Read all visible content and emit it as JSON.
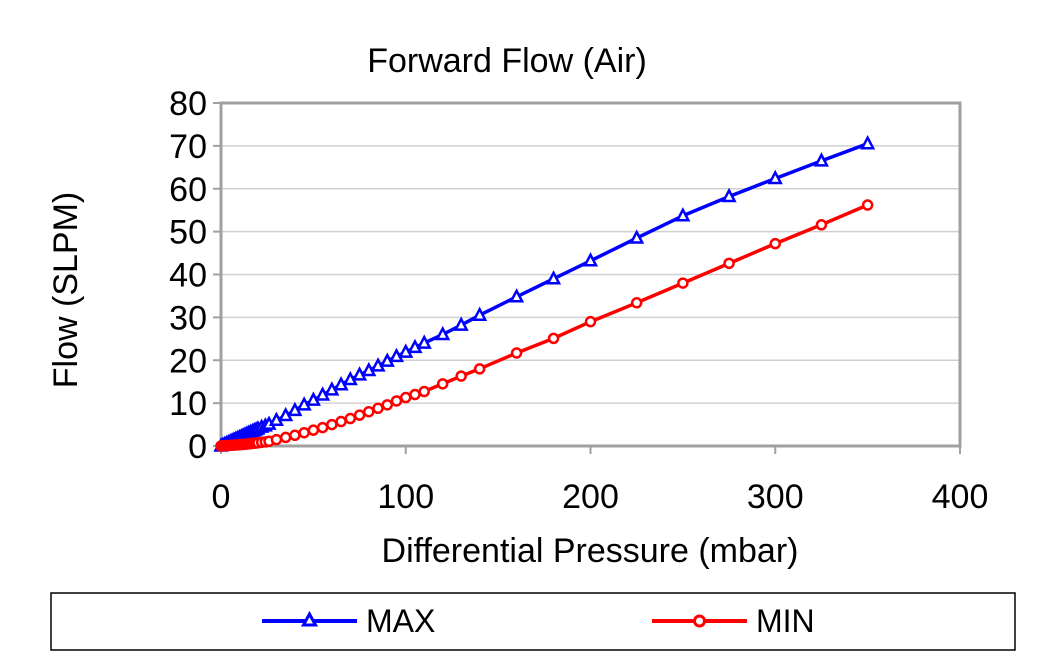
{
  "chart_data": {
    "type": "line",
    "title": "Forward Flow (Air)",
    "xlabel": "Differential Pressure (mbar)",
    "ylabel": "Flow (SLPM)",
    "xlim": [
      0,
      400
    ],
    "ylim": [
      0,
      80
    ],
    "xticks": [
      0,
      100,
      200,
      300,
      400
    ],
    "yticks": [
      0,
      10,
      20,
      30,
      40,
      50,
      60,
      70,
      80
    ],
    "grid": "horizontal",
    "legend_position": "bottom",
    "series": [
      {
        "name": "MAX",
        "color": "#0000ff",
        "marker": "triangle",
        "x": [
          0,
          1,
          2,
          3,
          4,
          5,
          6,
          7,
          8,
          9,
          10,
          11,
          12,
          13,
          14,
          15,
          16,
          17,
          18,
          19,
          20,
          22,
          24,
          26,
          30,
          35,
          40,
          45,
          50,
          55,
          60,
          65,
          70,
          75,
          80,
          85,
          90,
          95,
          100,
          105,
          110,
          120,
          130,
          140,
          160,
          180,
          200,
          225,
          250,
          275,
          300,
          325,
          350
        ],
        "y": [
          0,
          0.2,
          0.4,
          0.6,
          0.8,
          1.0,
          1.2,
          1.4,
          1.6,
          1.8,
          2.0,
          2.2,
          2.4,
          2.6,
          2.8,
          3.0,
          3.2,
          3.4,
          3.6,
          3.8,
          4.0,
          4.4,
          4.7,
          5.1,
          6.0,
          7.1,
          8.3,
          9.6,
          10.7,
          11.9,
          13.1,
          14.3,
          15.5,
          16.6,
          17.6,
          18.7,
          19.8,
          20.9,
          21.9,
          23.0,
          24.0,
          26.0,
          28.2,
          30.5,
          34.8,
          39.0,
          43.2,
          48.5,
          53.7,
          58.2,
          62.4,
          66.5,
          70.5
        ]
      },
      {
        "name": "MIN",
        "color": "#ff0000",
        "marker": "circle",
        "x": [
          0,
          1,
          2,
          3,
          4,
          5,
          6,
          7,
          8,
          9,
          10,
          11,
          12,
          13,
          14,
          15,
          16,
          17,
          18,
          19,
          20,
          22,
          24,
          26,
          30,
          35,
          40,
          45,
          50,
          55,
          60,
          65,
          70,
          75,
          80,
          85,
          90,
          95,
          100,
          105,
          110,
          120,
          130,
          140,
          160,
          180,
          200,
          225,
          250,
          275,
          300,
          325,
          350
        ],
        "y": [
          0,
          0.03,
          0.06,
          0.09,
          0.12,
          0.15,
          0.18,
          0.21,
          0.24,
          0.27,
          0.3,
          0.34,
          0.38,
          0.42,
          0.46,
          0.5,
          0.55,
          0.6,
          0.65,
          0.7,
          0.75,
          0.85,
          0.95,
          1.1,
          1.5,
          2.0,
          2.5,
          3.1,
          3.7,
          4.3,
          5.0,
          5.7,
          6.4,
          7.2,
          8.0,
          8.8,
          9.6,
          10.5,
          11.3,
          12.0,
          12.7,
          14.5,
          16.3,
          18.0,
          21.7,
          25.1,
          29.0,
          33.4,
          38.0,
          42.6,
          47.2,
          51.6,
          56.2
        ]
      }
    ]
  }
}
